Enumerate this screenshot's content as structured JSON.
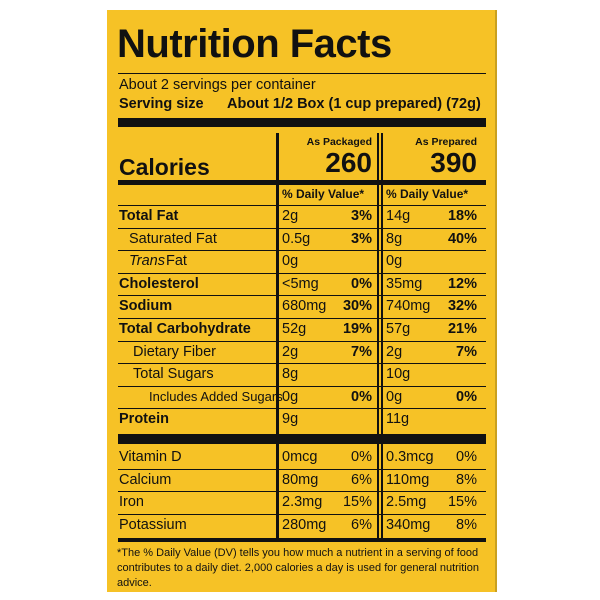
{
  "title": "Nutrition Facts",
  "servings": "About 2 servings per container",
  "serving_size": {
    "label": "Serving size",
    "value": "About 1/2 Box (1 cup prepared) (72g)"
  },
  "calories_label": "Calories",
  "columns": [
    {
      "heading": "As Packaged",
      "calories": 260,
      "dv_header": "% Daily Value*"
    },
    {
      "heading": "As Prepared",
      "calories": 390,
      "dv_header": "% Daily Value*"
    }
  ],
  "nutrients": [
    {
      "name": "Total Fat",
      "amounts": [
        "2g",
        "14g"
      ],
      "dv": [
        "3%",
        "18%"
      ]
    },
    {
      "name": "Saturated Fat",
      "amounts": [
        "0.5g",
        "8g"
      ],
      "dv": [
        "3%",
        "40%"
      ]
    },
    {
      "name_prefix": "Trans",
      "name": "Fat",
      "amounts": [
        "0g",
        "0g"
      ]
    },
    {
      "name": "Cholesterol",
      "amounts": [
        "<5mg",
        "35mg"
      ],
      "dv": [
        "0%",
        "12%"
      ]
    },
    {
      "name": "Sodium",
      "amounts": [
        "680mg",
        "740mg"
      ],
      "dv": [
        "30%",
        "32%"
      ]
    },
    {
      "name": "Total Carbohydrate",
      "amounts": [
        "52g",
        "57g"
      ],
      "dv": [
        "19%",
        "21%"
      ]
    },
    {
      "name": "Dietary Fiber",
      "amounts": [
        "2g",
        "2g"
      ],
      "dv": [
        "7%",
        "7%"
      ]
    },
    {
      "name": "Total Sugars",
      "amounts": [
        "8g",
        "10g"
      ]
    },
    {
      "name": "Includes Added Sugars",
      "amounts": [
        "0g",
        "0g"
      ],
      "dv": [
        "0%",
        "0%"
      ]
    },
    {
      "name": "Protein",
      "amounts": [
        "9g",
        "11g"
      ]
    }
  ],
  "vitamins": [
    {
      "name": "Vitamin D",
      "amounts": [
        "0mcg",
        "0.3mcg"
      ],
      "dv": [
        "0%",
        "0%"
      ]
    },
    {
      "name": "Calcium",
      "amounts": [
        "80mg",
        "110mg"
      ],
      "dv": [
        "6%",
        "8%"
      ]
    },
    {
      "name": "Iron",
      "amounts": [
        "2.3mg",
        "2.5mg"
      ],
      "dv": [
        "15%",
        "15%"
      ]
    },
    {
      "name": "Potassium",
      "amounts": [
        "280mg",
        "340mg"
      ],
      "dv": [
        "6%",
        "8%"
      ]
    }
  ],
  "footnote": "*The % Daily Value (DV) tells you how much a nutrient in a serving of food contributes to a daily diet. 2,000 calories a day is used for general nutrition advice."
}
